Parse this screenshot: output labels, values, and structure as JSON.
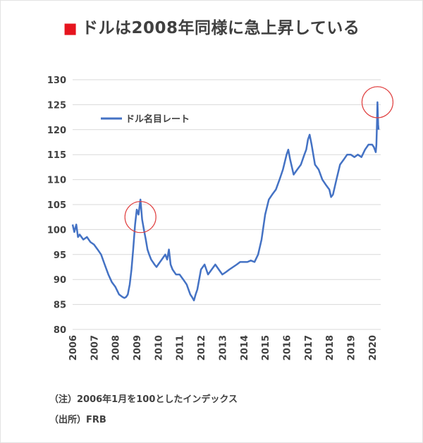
{
  "title": {
    "marker": "■",
    "text": "ドルは2008年同様に急上昇している"
  },
  "notes": {
    "note": "（注）2006年1月を100としたインデックス",
    "source": "（出所）FRB"
  },
  "colors": {
    "line": "#4472c4",
    "highlight_circle": "#e04040",
    "grid": "#d9d9d9",
    "text": "#404040",
    "title_marker": "#e6141e"
  },
  "chart_data": {
    "type": "line",
    "title": "ドルは2008年同様に急上昇している",
    "xlabel": "",
    "ylabel": "",
    "ylim": [
      80,
      130
    ],
    "yticks": [
      80,
      85,
      90,
      95,
      100,
      105,
      110,
      115,
      120,
      125,
      130
    ],
    "xlim": [
      2006.0,
      2020.4
    ],
    "xticks": [
      "2006",
      "2007",
      "2008",
      "2009",
      "2010",
      "2011",
      "2012",
      "2013",
      "2014",
      "2015",
      "2016",
      "2017",
      "2018",
      "2019",
      "2020"
    ],
    "grid": "horizontal",
    "legend": {
      "position": "top-left",
      "entries": [
        "ドル名目レート"
      ]
    },
    "annotations": [
      {
        "type": "circle",
        "x": 2009.17,
        "y": 102.5,
        "meaning": "2009 peak"
      },
      {
        "type": "circle",
        "x": 2020.25,
        "y": 125.5,
        "meaning": "2020 spike"
      }
    ],
    "series": [
      {
        "name": "ドル名目レート",
        "x": [
          2006.0,
          2006.08,
          2006.17,
          2006.25,
          2006.33,
          2006.5,
          2006.67,
          2006.83,
          2007.0,
          2007.17,
          2007.33,
          2007.5,
          2007.67,
          2007.83,
          2008.0,
          2008.17,
          2008.33,
          2008.42,
          2008.5,
          2008.58,
          2008.67,
          2008.75,
          2008.83,
          2008.92,
          2009.0,
          2009.08,
          2009.17,
          2009.25,
          2009.33,
          2009.42,
          2009.5,
          2009.58,
          2009.67,
          2009.75,
          2009.83,
          2009.92,
          2010.0,
          2010.17,
          2010.33,
          2010.42,
          2010.5,
          2010.58,
          2010.67,
          2010.83,
          2011.0,
          2011.17,
          2011.33,
          2011.5,
          2011.58,
          2011.67,
          2011.75,
          2011.83,
          2012.0,
          2012.17,
          2012.33,
          2012.5,
          2012.67,
          2012.83,
          2013.0,
          2013.17,
          2013.33,
          2013.5,
          2013.67,
          2013.83,
          2014.0,
          2014.17,
          2014.33,
          2014.5,
          2014.67,
          2014.83,
          2015.0,
          2015.17,
          2015.33,
          2015.5,
          2015.67,
          2015.83,
          2016.0,
          2016.08,
          2016.17,
          2016.33,
          2016.5,
          2016.67,
          2016.83,
          2016.92,
          2017.0,
          2017.08,
          2017.17,
          2017.33,
          2017.5,
          2017.67,
          2017.83,
          2018.0,
          2018.08,
          2018.17,
          2018.33,
          2018.5,
          2018.67,
          2018.83,
          2019.0,
          2019.17,
          2019.33,
          2019.5,
          2019.67,
          2019.83,
          2020.0,
          2020.08,
          2020.17,
          2020.2,
          2020.22,
          2020.25,
          2020.28,
          2020.3
        ],
        "values": [
          101,
          99.5,
          101,
          98.5,
          99,
          98,
          98.5,
          97.5,
          97,
          96,
          95,
          93,
          91,
          89.5,
          88.5,
          87,
          86.5,
          86.3,
          86.5,
          87,
          89,
          92,
          96,
          101,
          104,
          103,
          106,
          102,
          100,
          98,
          96,
          95,
          94,
          93.5,
          93,
          92.5,
          93,
          94,
          95,
          94,
          96,
          93,
          92,
          91,
          91,
          90,
          89,
          87,
          86.5,
          85.8,
          87,
          88,
          92,
          93,
          91,
          92,
          93,
          92,
          91,
          91.5,
          92,
          92.5,
          93,
          93.5,
          93.5,
          93.5,
          93.8,
          93.5,
          95,
          98,
          103,
          106,
          107,
          108,
          110,
          112,
          115,
          116,
          114,
          111,
          112,
          113,
          115,
          116,
          118,
          119,
          117,
          113,
          112,
          110,
          109,
          108,
          106.5,
          107,
          110,
          113,
          114,
          115,
          115,
          114.5,
          115,
          114.5,
          116,
          117,
          117,
          116.5,
          115.5,
          117,
          120,
          125.5,
          121,
          120
        ]
      }
    ]
  }
}
